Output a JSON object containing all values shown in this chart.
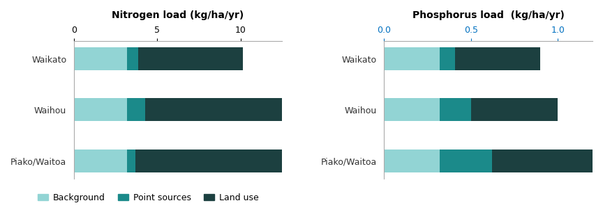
{
  "nitrogen": {
    "title": "Nitrogen load (kg/ha/yr)",
    "categories": [
      "Waikato",
      "Waihou",
      "Piako/Waitoa"
    ],
    "background": [
      3.2,
      3.2,
      3.2
    ],
    "point_sources": [
      0.65,
      1.1,
      0.5
    ],
    "land_use": [
      6.3,
      8.9,
      9.6
    ],
    "xlim": [
      0,
      12.5
    ],
    "xticks": [
      0,
      5,
      10
    ],
    "xticklabels": [
      "0",
      "5",
      "10"
    ],
    "tick_color": "#000000"
  },
  "phosphorus": {
    "title": "Phosphorus load  (kg/ha/yr)",
    "categories": [
      "Waikato",
      "Waihou",
      "Piako/Waitoa"
    ],
    "background": [
      0.32,
      0.32,
      0.32
    ],
    "point_sources": [
      0.09,
      0.18,
      0.3
    ],
    "land_use": [
      0.49,
      0.5,
      0.58
    ],
    "xlim": [
      0,
      1.2
    ],
    "xticks": [
      0.0,
      0.5,
      1.0
    ],
    "xticklabels": [
      "0.0",
      "0.5",
      "1.0"
    ],
    "tick_color": "#0070c0"
  },
  "color_background": "#92d4d4",
  "color_point_sources": "#1b8a8a",
  "color_land_use": "#1c4040",
  "legend_labels": [
    "Background",
    "Point sources",
    "Land use"
  ],
  "bar_height": 0.45,
  "figsize": [
    8.64,
    3.02
  ],
  "dpi": 100
}
